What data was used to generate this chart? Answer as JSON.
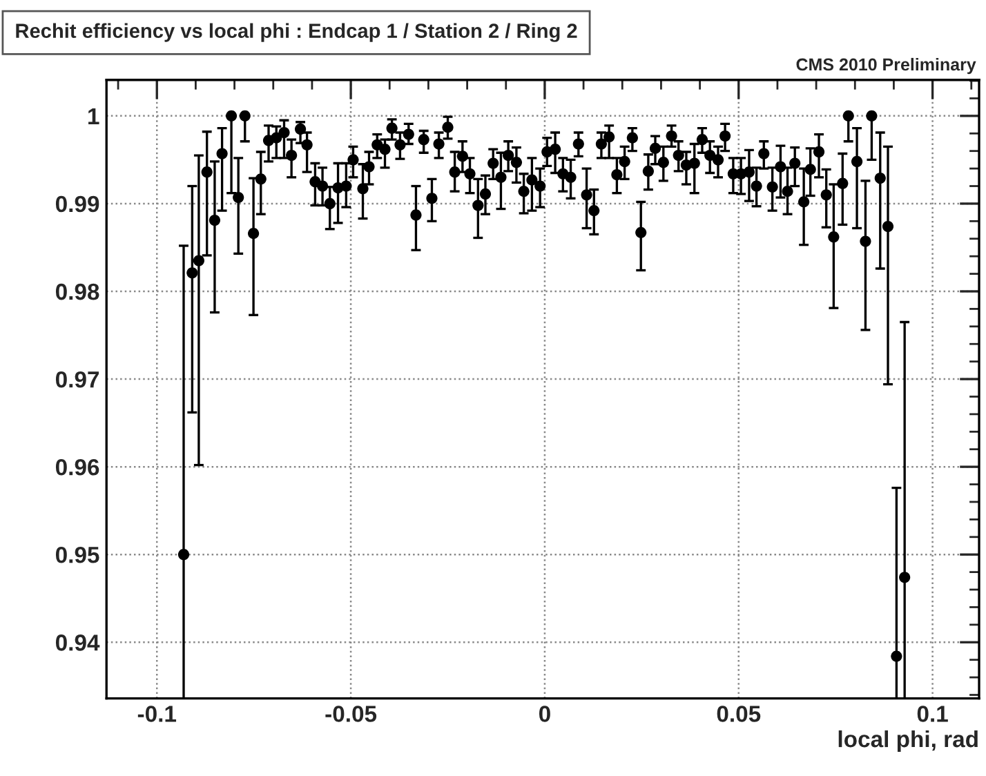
{
  "chart_data": {
    "type": "scatter",
    "title": "Rechit efficiency vs local phi : Endcap 1 / Station 2 / Ring 2",
    "xlabel": "local phi, rad",
    "annotations": [
      "CMS 2010 Preliminary"
    ],
    "x": [
      -0.0931,
      -0.0909,
      -0.0892,
      -0.0871,
      -0.0851,
      -0.0832,
      -0.0808,
      -0.079,
      -0.0773,
      -0.0751,
      -0.0732,
      -0.0712,
      -0.0692,
      -0.0672,
      -0.0653,
      -0.063,
      -0.0613,
      -0.0592,
      -0.0573,
      -0.0554,
      -0.0533,
      -0.0512,
      -0.0494,
      -0.0469,
      -0.0453,
      -0.0432,
      -0.0412,
      -0.0394,
      -0.0373,
      -0.0351,
      -0.0332,
      -0.0312,
      -0.0291,
      -0.0273,
      -0.025,
      -0.0232,
      -0.0212,
      -0.0193,
      -0.0172,
      -0.0153,
      -0.0133,
      -0.0113,
      -0.0094,
      -0.0073,
      -0.0054,
      -0.0033,
      -0.0012,
      0.0006,
      0.0027,
      0.0047,
      0.0067,
      0.0087,
      0.0108,
      0.0127,
      0.0146,
      0.0166,
      0.0186,
      0.0206,
      0.0226,
      0.0248,
      0.0267,
      0.0285,
      0.0306,
      0.0327,
      0.0345,
      0.0365,
      0.0386,
      0.0406,
      0.0426,
      0.0447,
      0.0465,
      0.0486,
      0.0506,
      0.0527,
      0.0546,
      0.0565,
      0.0587,
      0.0608,
      0.0626,
      0.0645,
      0.0668,
      0.0685,
      0.0707,
      0.0726,
      0.0745,
      0.0768,
      0.0783,
      0.0805,
      0.0827,
      0.0843,
      0.0865,
      0.0885,
      0.0907,
      0.0928
    ],
    "series": [
      {
        "color": "#000000",
        "values": [
          0.95,
          0.9821,
          0.9835,
          0.9936,
          0.9881,
          0.9957,
          1.0,
          0.9907,
          1.0,
          0.9866,
          0.9928,
          0.9972,
          0.9975,
          0.9981,
          0.9955,
          0.9985,
          0.9967,
          0.9925,
          0.992,
          0.99,
          0.9918,
          0.992,
          0.995,
          0.9917,
          0.9942,
          0.9967,
          0.9962,
          0.9986,
          0.9967,
          0.9979,
          0.9887,
          0.9973,
          0.9906,
          0.9968,
          0.9987,
          0.9936,
          0.9954,
          0.9934,
          0.9898,
          0.9911,
          0.9946,
          0.993,
          0.9955,
          0.9947,
          0.9914,
          0.9927,
          0.992,
          0.9959,
          0.9962,
          0.9934,
          0.993,
          0.9968,
          0.991,
          0.9892,
          0.9968,
          0.9976,
          0.9933,
          0.9948,
          0.9975,
          0.9867,
          0.9937,
          0.9963,
          0.9947,
          0.9977,
          0.9955,
          0.9944,
          0.9946,
          0.9973,
          0.9955,
          0.995,
          0.9977,
          0.9934,
          0.9934,
          0.9936,
          0.992,
          0.9957,
          0.9919,
          0.9942,
          0.9914,
          0.9946,
          0.9902,
          0.9939,
          0.9959,
          0.991,
          0.9862,
          0.9923,
          1.0,
          0.9948,
          0.9857,
          1.0,
          0.9929,
          0.9874,
          0.9384,
          0.9474
        ],
        "errors": [
          [
            0.9336,
            0.9852
          ],
          [
            0.9662,
            0.992
          ],
          [
            0.9602,
            0.9955
          ],
          [
            0.9841,
            0.9982
          ],
          [
            0.9776,
            0.9948
          ],
          [
            0.9892,
            0.9986
          ],
          [
            0.9912,
            1.0
          ],
          [
            0.9843,
            0.9952
          ],
          [
            0.9971,
            1.0
          ],
          [
            0.9773,
            0.9929
          ],
          [
            0.9888,
            0.9959
          ],
          [
            0.9948,
            0.9989
          ],
          [
            0.9952,
            0.9988
          ],
          [
            0.9952,
            0.9995
          ],
          [
            0.993,
            0.9973
          ],
          [
            0.9969,
            0.9993
          ],
          [
            0.9936,
            0.9981
          ],
          [
            0.9898,
            0.9946
          ],
          [
            0.9898,
            0.9941
          ],
          [
            0.9871,
            0.9919
          ],
          [
            0.9878,
            0.9946
          ],
          [
            0.9896,
            0.9946
          ],
          [
            0.993,
            0.9965
          ],
          [
            0.9883,
            0.9945
          ],
          [
            0.9922,
            0.9959
          ],
          [
            0.9952,
            0.9979
          ],
          [
            0.9941,
            0.9973
          ],
          [
            0.9973,
            0.9996
          ],
          [
            0.9951,
            0.9981
          ],
          [
            0.9968,
            0.9991
          ],
          [
            0.9847,
            0.992
          ],
          [
            0.9958,
            0.9983
          ],
          [
            0.988,
            0.9928
          ],
          [
            0.9952,
            0.9981
          ],
          [
            0.9974,
            0.9999
          ],
          [
            0.9914,
            0.9959
          ],
          [
            0.9936,
            0.9971
          ],
          [
            0.9912,
            0.9952
          ],
          [
            0.9861,
            0.9928
          ],
          [
            0.9888,
            0.9932
          ],
          [
            0.9928,
            0.9962
          ],
          [
            0.9894,
            0.9958
          ],
          [
            0.9937,
            0.9971
          ],
          [
            0.9924,
            0.9964
          ],
          [
            0.9889,
            0.9934
          ],
          [
            0.9892,
            0.9952
          ],
          [
            0.9896,
            0.994
          ],
          [
            0.9943,
            0.9975
          ],
          [
            0.9935,
            0.9981
          ],
          [
            0.9914,
            0.9952
          ],
          [
            0.9906,
            0.995
          ],
          [
            0.9954,
            0.9981
          ],
          [
            0.9872,
            0.994
          ],
          [
            0.9865,
            0.9916
          ],
          [
            0.9952,
            0.9981
          ],
          [
            0.9952,
            0.9989
          ],
          [
            0.9912,
            0.9952
          ],
          [
            0.9928,
            0.9965
          ],
          [
            0.996,
            0.9986
          ],
          [
            0.9824,
            0.9902
          ],
          [
            0.9916,
            0.9956
          ],
          [
            0.9945,
            0.9977
          ],
          [
            0.9926,
            0.9965
          ],
          [
            0.9965,
            0.9989
          ],
          [
            0.9937,
            0.9971
          ],
          [
            0.9922,
            0.9959
          ],
          [
            0.9912,
            0.9968
          ],
          [
            0.9958,
            0.9986
          ],
          [
            0.9935,
            0.9971
          ],
          [
            0.993,
            0.9965
          ],
          [
            0.996,
            0.9991
          ],
          [
            0.9912,
            0.9952
          ],
          [
            0.9911,
            0.9952
          ],
          [
            0.9903,
            0.9961
          ],
          [
            0.9897,
            0.9941
          ],
          [
            0.994,
            0.9971
          ],
          [
            0.9892,
            0.9941
          ],
          [
            0.9907,
            0.9966
          ],
          [
            0.9888,
            0.9941
          ],
          [
            0.992,
            0.9964
          ],
          [
            0.9853,
            0.994
          ],
          [
            0.9909,
            0.9963
          ],
          [
            0.993,
            0.9979
          ],
          [
            0.9873,
            0.9939
          ],
          [
            0.9781,
            0.9922
          ],
          [
            0.9876,
            0.9957
          ],
          [
            0.9971,
            1.0
          ],
          [
            0.9872,
            0.9986
          ],
          [
            0.9756,
            0.9926
          ],
          [
            0.995,
            1.0
          ],
          [
            0.9826,
            0.9981
          ],
          [
            0.9694,
            0.9965
          ],
          [
            0.9336,
            0.9576
          ],
          [
            0.9336,
            0.9765
          ]
        ]
      }
    ],
    "xlim": [
      -0.113,
      0.112
    ],
    "xticks": [
      -0.1,
      -0.05,
      0,
      0.05,
      0.1
    ],
    "ylim": [
      0.9336,
      1.0041
    ],
    "yticks": [
      0.94,
      0.95,
      0.96,
      0.97,
      0.98,
      0.99,
      1
    ],
    "grid": true,
    "marker": "circle"
  }
}
